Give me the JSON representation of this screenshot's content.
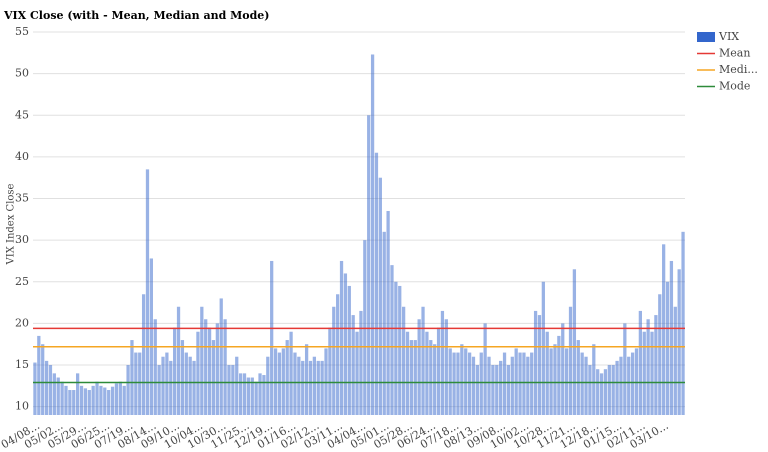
{
  "chart_data": {
    "type": "bar",
    "title": "VIX Close (with - Mean, Median and Mode)",
    "y_label": "VIX Index Close",
    "categories": [
      "04/08...",
      null,
      null,
      null,
      null,
      null,
      "05/02...",
      null,
      null,
      null,
      null,
      null,
      "05/29...",
      null,
      null,
      null,
      null,
      null,
      "06/25...",
      null,
      null,
      null,
      null,
      null,
      "07/19...",
      null,
      null,
      null,
      null,
      null,
      "08/14...",
      null,
      null,
      null,
      null,
      null,
      "09/10...",
      null,
      null,
      null,
      null,
      null,
      "10/04...",
      null,
      null,
      null,
      null,
      null,
      "10/30...",
      null,
      null,
      null,
      null,
      null,
      "11/25...",
      null,
      null,
      null,
      null,
      null,
      "12/19...",
      null,
      null,
      null,
      null,
      null,
      "01/16...",
      null,
      null,
      null,
      null,
      null,
      "02/12...",
      null,
      null,
      null,
      null,
      null,
      "03/11...",
      null,
      null,
      null,
      null,
      null,
      "04/04...",
      null,
      null,
      null,
      null,
      null,
      "05/01...",
      null,
      null,
      null,
      null,
      null,
      "05/28...",
      null,
      null,
      null,
      null,
      null,
      "06/24...",
      null,
      null,
      null,
      null,
      null,
      "07/18...",
      null,
      null,
      null,
      null,
      null,
      "08/13...",
      null,
      null,
      null,
      null,
      null,
      "09/08...",
      null,
      null,
      null,
      null,
      null,
      "10/02...",
      null,
      null,
      null,
      null,
      null,
      "10/28...",
      null,
      null,
      null,
      null,
      null,
      "11/21...",
      null,
      null,
      null,
      null,
      null,
      "12/18...",
      null,
      null,
      null,
      null,
      null,
      "01/15...",
      null,
      null,
      null,
      null,
      null,
      "02/11...",
      null,
      null,
      null,
      null,
      null,
      "03/10...",
      null,
      null,
      null,
      null,
      null
    ],
    "series": [
      {
        "name": "VIX",
        "color": "#3366cc",
        "values": [
          15.3,
          18.5,
          17.5,
          15.5,
          15,
          14,
          13.5,
          13,
          12.5,
          12,
          12,
          14,
          12.5,
          12.2,
          12,
          12.5,
          13,
          12.5,
          12.3,
          12,
          12.4,
          12.8,
          13,
          12.5,
          15,
          18,
          16.5,
          16.5,
          23.5,
          38.5,
          27.8,
          20.5,
          15,
          16,
          16.5,
          15.5,
          19.5,
          22,
          18,
          16.5,
          16,
          15.5,
          19,
          22,
          20.5,
          19.5,
          18,
          20,
          23,
          20.5,
          15,
          15,
          16,
          14,
          14,
          13.5,
          13.5,
          13,
          14,
          13.8,
          16,
          27.5,
          17,
          16.5,
          17,
          18,
          19,
          16.5,
          16,
          15.5,
          17.5,
          15.5,
          16,
          15.5,
          15.5,
          17,
          19.5,
          22,
          23.5,
          27.5,
          26,
          24.5,
          21,
          19,
          21.5,
          30,
          45,
          52.3,
          40.5,
          37.5,
          31,
          33.5,
          27,
          25,
          24.5,
          22,
          19,
          18,
          18,
          20.5,
          22,
          19,
          18,
          17.5,
          19.5,
          21.5,
          20.5,
          17,
          16.5,
          16.5,
          17.5,
          17,
          16.5,
          16,
          15,
          16.5,
          20,
          16,
          15,
          15,
          15.5,
          16.5,
          15,
          16,
          17,
          16.5,
          16.5,
          16,
          16.5,
          21.5,
          21,
          25,
          19,
          17,
          17.5,
          18.5,
          20,
          17,
          22,
          26.5,
          18,
          16.5,
          16,
          15,
          17.5,
          14.5,
          14,
          14.5,
          15,
          15,
          15.5,
          16,
          20,
          16,
          16.5,
          17,
          21.5,
          19,
          20.5,
          19,
          21,
          23.5,
          29.5,
          25,
          27.5,
          22,
          26.5,
          31
        ]
      }
    ],
    "reference_lines": [
      {
        "name": "Mean",
        "color": "#e53935",
        "value": 19.4
      },
      {
        "name": "Medi...",
        "color": "#f5a623",
        "value": 17.2
      },
      {
        "name": "Mode",
        "color": "#2e8b3a",
        "value": 12.9
      }
    ],
    "ylim": [
      9,
      55
    ],
    "yticks": [
      10,
      15,
      20,
      25,
      30,
      35,
      40,
      45,
      50,
      55
    ],
    "grid": true
  }
}
